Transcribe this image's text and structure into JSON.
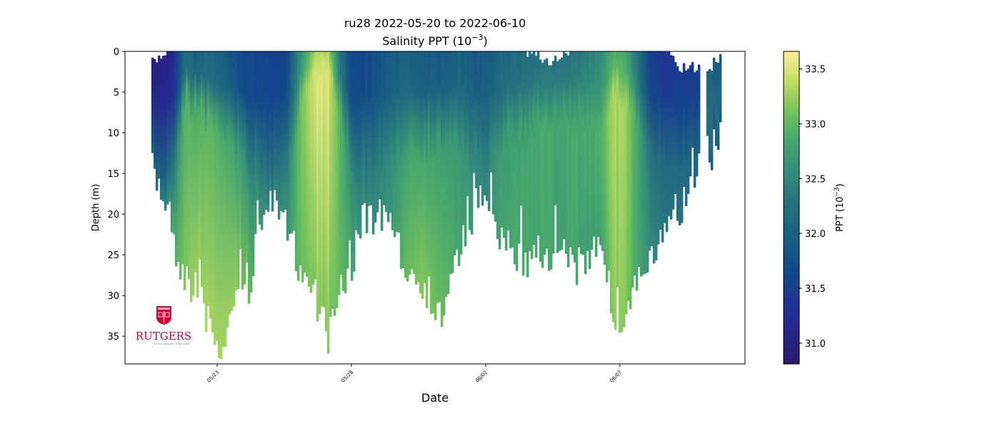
{
  "chart_data": {
    "type": "scatter",
    "title_line1": "ru28 2022-05-20 to 2022-06-10",
    "title_line2_prefix": "Salinity PPT (10",
    "title_line2_sup": "−3",
    "title_line2_suffix": ")",
    "xlabel": "Date",
    "ylabel": "Depth (m)",
    "x_reference_date": "2022-05-23",
    "x_unit": "days since reference date",
    "xlim": [
      -3.43,
      19.66
    ],
    "ylim": [
      0,
      38.4
    ],
    "y_inverted": true,
    "x_ticks": [
      {
        "value": 0,
        "label": "05/23"
      },
      {
        "value": 5,
        "label": "05/28"
      },
      {
        "value": 10,
        "label": "06/02"
      },
      {
        "value": 15,
        "label": "06/07"
      }
    ],
    "y_ticks": [
      0,
      5,
      10,
      15,
      20,
      25,
      30,
      35
    ],
    "colorbar": {
      "label_prefix": "PPT (10",
      "label_sup": "−3",
      "label_suffix": ")",
      "range": [
        30.81,
        33.66
      ],
      "ticks": [
        "31.0",
        "31.5",
        "32.0",
        "32.5",
        "33.0",
        "33.5"
      ],
      "colormap": "haline"
    },
    "profiles_note": "day, top depth (m), max depth (m), surface salinity, mixed-layer depth (m), deep salinity",
    "profiles": [
      {
        "day": -2.45,
        "top": 1.5,
        "max": 15,
        "s_surf": 31.0,
        "mld": 9,
        "s_deep": 32.3
      },
      {
        "day": -1.97,
        "top": 0,
        "max": 18,
        "s_surf": 31.05,
        "mld": 10,
        "s_deep": 32.6
      },
      {
        "day": -1.7,
        "top": 0,
        "max": 23,
        "s_surf": 31.1,
        "mld": 9,
        "s_deep": 33.0
      },
      {
        "day": -1.22,
        "top": 0,
        "max": 28,
        "s_surf": 32.2,
        "mld": 4,
        "s_deep": 33.3
      },
      {
        "day": -0.9,
        "top": 0,
        "max": 29,
        "s_surf": 32.0,
        "mld": 5,
        "s_deep": 33.4
      },
      {
        "day": -0.37,
        "top": 0,
        "max": 33,
        "s_surf": 32.1,
        "mld": 6,
        "s_deep": 33.45
      },
      {
        "day": 0.03,
        "top": 0,
        "max": 38,
        "s_surf": 32.0,
        "mld": 7,
        "s_deep": 33.45
      },
      {
        "day": 0.56,
        "top": 0,
        "max": 32,
        "s_surf": 31.8,
        "mld": 8,
        "s_deep": 33.4
      },
      {
        "day": 1.09,
        "top": 0,
        "max": 30,
        "s_surf": 31.6,
        "mld": 10,
        "s_deep": 33.2
      },
      {
        "day": 1.49,
        "top": 0,
        "max": 23,
        "s_surf": 31.6,
        "mld": 11,
        "s_deep": 32.9
      },
      {
        "day": 2.02,
        "top": 0,
        "max": 19,
        "s_surf": 31.55,
        "mld": 11,
        "s_deep": 32.7
      },
      {
        "day": 2.55,
        "top": 0,
        "max": 22,
        "s_surf": 31.6,
        "mld": 10,
        "s_deep": 32.8
      },
      {
        "day": 3.09,
        "top": 0,
        "max": 27,
        "s_surf": 32.6,
        "mld": 4,
        "s_deep": 33.2
      },
      {
        "day": 3.62,
        "top": 0,
        "max": 30,
        "s_surf": 33.3,
        "mld": 2,
        "s_deep": 33.3
      },
      {
        "day": 4.1,
        "top": 0,
        "max": 35,
        "s_surf": 33.3,
        "mld": 2,
        "s_deep": 33.3
      },
      {
        "day": 4.55,
        "top": 0,
        "max": 30,
        "s_surf": 32.3,
        "mld": 6,
        "s_deep": 33.2
      },
      {
        "day": 4.95,
        "top": 0,
        "max": 27,
        "s_surf": 31.6,
        "mld": 9,
        "s_deep": 33.0
      },
      {
        "day": 5.21,
        "top": 0,
        "max": 22,
        "s_surf": 31.6,
        "mld": 10,
        "s_deep": 32.8
      },
      {
        "day": 5.74,
        "top": 0,
        "max": 20,
        "s_surf": 31.7,
        "mld": 10,
        "s_deep": 32.7
      },
      {
        "day": 6.41,
        "top": 0,
        "max": 21,
        "s_surf": 31.9,
        "mld": 9,
        "s_deep": 32.8
      },
      {
        "day": 7.07,
        "top": 0,
        "max": 27,
        "s_surf": 32.0,
        "mld": 8,
        "s_deep": 33.2
      },
      {
        "day": 7.61,
        "top": 0,
        "max": 28,
        "s_surf": 31.9,
        "mld": 8,
        "s_deep": 33.3
      },
      {
        "day": 8.27,
        "top": 0,
        "max": 33,
        "s_surf": 31.9,
        "mld": 8,
        "s_deep": 33.2
      },
      {
        "day": 8.94,
        "top": 0,
        "max": 25,
        "s_surf": 32.0,
        "mld": 8,
        "s_deep": 33.0
      },
      {
        "day": 9.47,
        "top": 0,
        "max": 20,
        "s_surf": 31.9,
        "mld": 9,
        "s_deep": 32.8
      },
      {
        "day": 10.0,
        "top": 0,
        "max": 17,
        "s_surf": 31.9,
        "mld": 10,
        "s_deep": 32.6
      },
      {
        "day": 10.27,
        "top": 0,
        "max": 22,
        "s_surf": 32.0,
        "mld": 9,
        "s_deep": 32.9
      },
      {
        "day": 10.8,
        "top": 0,
        "max": 24,
        "s_surf": 32.1,
        "mld": 7,
        "s_deep": 33.0
      },
      {
        "day": 11.46,
        "top": 0,
        "max": 26,
        "s_surf": 32.2,
        "mld": 7,
        "s_deep": 33.0
      },
      {
        "day": 12.13,
        "top": 1,
        "max": 25,
        "s_surf": 32.3,
        "mld": 6,
        "s_deep": 33.0
      },
      {
        "day": 12.66,
        "top": 1,
        "max": 24,
        "s_surf": 32.3,
        "mld": 6,
        "s_deep": 32.9
      },
      {
        "day": 13.19,
        "top": 0,
        "max": 27,
        "s_surf": 32.3,
        "mld": 6,
        "s_deep": 33.0
      },
      {
        "day": 13.72,
        "top": 0,
        "max": 26,
        "s_surf": 32.4,
        "mld": 6,
        "s_deep": 32.9
      },
      {
        "day": 14.26,
        "top": 0,
        "max": 22,
        "s_surf": 32.5,
        "mld": 6,
        "s_deep": 32.9
      },
      {
        "day": 14.73,
        "top": 0,
        "max": 34,
        "s_surf": 32.9,
        "mld": 3,
        "s_deep": 33.35
      },
      {
        "day": 15.19,
        "top": 0,
        "max": 32,
        "s_surf": 32.8,
        "mld": 4,
        "s_deep": 33.3
      },
      {
        "day": 15.59,
        "top": 0,
        "max": 28,
        "s_surf": 32.3,
        "mld": 6,
        "s_deep": 33.0
      },
      {
        "day": 16.12,
        "top": 0,
        "max": 26,
        "s_surf": 31.5,
        "mld": 9,
        "s_deep": 32.7
      },
      {
        "day": 16.65,
        "top": 0,
        "max": 23,
        "s_surf": 31.4,
        "mld": 10,
        "s_deep": 32.5
      },
      {
        "day": 17.18,
        "top": 2,
        "max": 20,
        "s_surf": 31.45,
        "mld": 10,
        "s_deep": 32.4
      },
      {
        "day": 17.85,
        "top": 2,
        "max": 14,
        "s_surf": 31.45,
        "mld": 9,
        "s_deep": 32.2
      },
      {
        "day": 18.25,
        "top": 2,
        "max": 13,
        "s_surf": 32.0,
        "mld": 6,
        "s_deep": 32.1
      },
      {
        "day": 18.65,
        "top": 1,
        "max": 11,
        "s_surf": 31.9,
        "mld": 5,
        "s_deep": 32.0
      }
    ],
    "data_end_day": 18.75
  },
  "logo": {
    "wordmark": "RUTGERS",
    "tagline": "THE STATE UNIVERSITY OF NEW JERSEY",
    "color": "#cc0033"
  }
}
